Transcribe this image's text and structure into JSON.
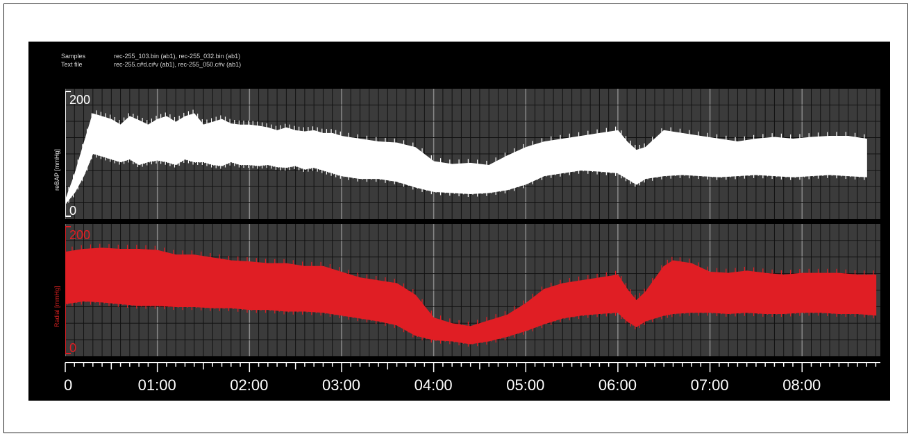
{
  "header": {
    "samples_label": "Samples",
    "samples_value": "rec-255_103.bin  (ab1), rec-255_032.bin  (ab1)",
    "textfile_label": "Text file",
    "textfile_value": "rec-255.c#d.c#v  (ab1), rec-255_050.c#v  (ab1)"
  },
  "colors": {
    "top_series": "#ffffff",
    "bottom_series": "#e01e24",
    "panel_bg": "#3b3b3b",
    "grid": "#111111",
    "major_grid": "#8a8a8a"
  },
  "chart_data": [
    {
      "type": "line",
      "ylabel": "reBAP [mmHg]",
      "ylim": [
        0,
        200
      ],
      "yticks": [
        "200",
        "0"
      ],
      "series": [
        {
          "x_minutes": [
            0.0,
            0.1,
            0.2,
            0.3,
            0.4,
            0.5,
            0.6,
            0.7,
            0.8,
            0.9,
            1.0,
            1.1,
            1.2,
            1.3,
            1.4,
            1.5,
            1.6,
            1.7,
            1.8,
            1.9,
            2.0,
            2.1,
            2.2,
            2.3,
            2.4,
            2.5,
            2.6,
            2.7,
            2.8,
            2.9,
            3.0,
            3.2,
            3.4,
            3.6,
            3.8,
            4.0,
            4.2,
            4.4,
            4.6,
            4.8,
            5.0,
            5.2,
            5.4,
            5.6,
            5.8,
            6.0,
            6.1,
            6.2,
            6.3,
            6.5,
            6.7,
            6.9,
            7.1,
            7.3,
            7.5,
            7.7,
            7.9,
            8.1,
            8.3,
            8.5,
            8.7
          ],
          "upper": [
            15,
            60,
            115,
            170,
            165,
            160,
            150,
            165,
            158,
            150,
            160,
            165,
            155,
            165,
            170,
            150,
            155,
            160,
            152,
            150,
            150,
            148,
            145,
            140,
            145,
            140,
            138,
            140,
            135,
            135,
            130,
            125,
            120,
            118,
            110,
            85,
            80,
            82,
            78,
            95,
            110,
            120,
            125,
            130,
            135,
            140,
            120,
            105,
            110,
            140,
            135,
            130,
            125,
            120,
            125,
            128,
            125,
            128,
            130,
            130,
            125
          ],
          "lower": [
            10,
            30,
            60,
            100,
            95,
            90,
            85,
            90,
            80,
            85,
            88,
            85,
            80,
            90,
            85,
            85,
            80,
            78,
            85,
            80,
            80,
            78,
            80,
            76,
            75,
            78,
            72,
            75,
            70,
            65,
            60,
            55,
            55,
            50,
            40,
            32,
            30,
            28,
            30,
            35,
            45,
            60,
            65,
            70,
            68,
            65,
            55,
            45,
            55,
            60,
            62,
            60,
            58,
            60,
            62,
            60,
            58,
            60,
            62,
            60,
            58
          ]
        }
      ]
    },
    {
      "type": "line",
      "ylabel": "Radial [mmHg]",
      "ylim": [
        0,
        200
      ],
      "yticks": [
        "200",
        "0"
      ],
      "series": [
        {
          "x_minutes": [
            0.0,
            0.2,
            0.4,
            0.6,
            0.8,
            1.0,
            1.2,
            1.4,
            1.6,
            1.8,
            2.0,
            2.2,
            2.4,
            2.6,
            2.8,
            3.0,
            3.2,
            3.4,
            3.6,
            3.8,
            4.0,
            4.2,
            4.4,
            4.6,
            4.8,
            5.0,
            5.2,
            5.4,
            5.6,
            5.8,
            6.0,
            6.1,
            6.2,
            6.3,
            6.5,
            6.6,
            6.8,
            7.0,
            7.2,
            7.4,
            7.6,
            7.8,
            8.0,
            8.2,
            8.4,
            8.6,
            8.8
          ],
          "upper": [
            165,
            170,
            172,
            170,
            170,
            168,
            160,
            160,
            155,
            150,
            148,
            145,
            145,
            140,
            140,
            130,
            120,
            115,
            110,
            90,
            50,
            40,
            35,
            45,
            55,
            75,
            100,
            110,
            115,
            120,
            125,
            100,
            80,
            95,
            140,
            150,
            145,
            130,
            128,
            132,
            128,
            125,
            128,
            128,
            128,
            125,
            125
          ],
          "lower": [
            75,
            80,
            78,
            75,
            72,
            72,
            70,
            70,
            68,
            68,
            65,
            65,
            62,
            62,
            60,
            55,
            50,
            45,
            38,
            20,
            12,
            10,
            5,
            10,
            18,
            28,
            40,
            50,
            55,
            58,
            60,
            45,
            35,
            45,
            55,
            58,
            60,
            60,
            58,
            60,
            58,
            58,
            60,
            60,
            58,
            58,
            55
          ]
        }
      ]
    }
  ],
  "x_axis": {
    "xlim_minutes": [
      0,
      8.85
    ],
    "tick_labels": [
      "0",
      "01:00",
      "02:00",
      "03:00",
      "04:00",
      "05:00",
      "06:00",
      "07:00",
      "08:00"
    ]
  }
}
